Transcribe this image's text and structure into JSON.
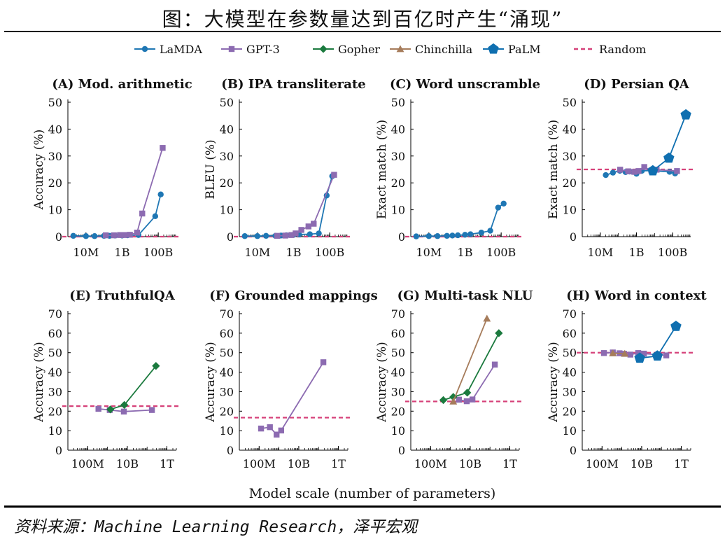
{
  "title": "图：大模型在参数量达到百亿时产生“涌现”",
  "source": "资料来源：Machine Learning Research，泽平宏观",
  "colors": {
    "LaMDA": "#1f77b4",
    "GPT-3": "#8c6bb1",
    "Gopher": "#1b7a3e",
    "Chinchilla": "#a67c5b",
    "PaLM": "#0f6fb0",
    "Random": "#d6427a"
  },
  "legend": [
    {
      "name": "LaMDA",
      "marker": "circle",
      "color": "#1f77b4"
    },
    {
      "name": "GPT-3",
      "marker": "square",
      "color": "#8c6bb1"
    },
    {
      "name": "Gopher",
      "marker": "diamond",
      "color": "#1b7a3e"
    },
    {
      "name": "Chinchilla",
      "marker": "triangle",
      "color": "#a67c5b"
    },
    {
      "name": "PaLM",
      "marker": "pentagon",
      "color": "#0f6fb0"
    },
    {
      "name": "Random",
      "marker": "dash",
      "color": "#d6427a"
    }
  ],
  "shared_xlabel": "Model scale (number of parameters)",
  "chart_data": [
    {
      "type": "line",
      "title": "(A) Mod. arithmetic",
      "ylabel": "Accuracy (%)",
      "xscale": "log",
      "xlim": [
        1000000.0,
        1000000000000.0
      ],
      "ylim": [
        0,
        50
      ],
      "yticks": [
        0,
        10,
        20,
        30,
        40,
        50
      ],
      "xticks": [
        {
          "v": 10000000.0,
          "label": "10M"
        },
        {
          "v": 1000000000.0,
          "label": "1B"
        },
        {
          "v": 100000000000.0,
          "label": "100B"
        }
      ],
      "random": 0,
      "series": [
        {
          "name": "LaMDA",
          "x": [
            2000000.0,
            10000000.0,
            30000000.0,
            100000000.0,
            200000000.0,
            400000000.0,
            1000000000.0,
            2000000000.0,
            8000000000.0,
            68000000000.0,
            137000000000.0
          ],
          "y": [
            0.3,
            0.2,
            0.2,
            0.3,
            0.3,
            0.4,
            0.4,
            0.5,
            0.6,
            7.6,
            15.7
          ]
        },
        {
          "name": "GPT-3",
          "x": [
            125000000.0,
            350000000.0,
            760000000.0,
            1300000000.0,
            2700000000.0,
            6700000000.0,
            13000000000.0,
            175000000000.0
          ],
          "y": [
            0.5,
            0.5,
            0.6,
            0.6,
            0.7,
            1.5,
            8.6,
            33
          ]
        }
      ]
    },
    {
      "type": "line",
      "title": "(B) IPA transliterate",
      "ylabel": "BLEU (%)",
      "xscale": "log",
      "xlim": [
        1000000.0,
        1000000000000.0
      ],
      "ylim": [
        0,
        50
      ],
      "yticks": [
        0,
        10,
        20,
        30,
        40,
        50
      ],
      "xticks": [
        {
          "v": 10000000.0,
          "label": "10M"
        },
        {
          "v": 1000000000.0,
          "label": "1B"
        },
        {
          "v": 100000000000.0,
          "label": "100B"
        }
      ],
      "random": 0,
      "series": [
        {
          "name": "LaMDA",
          "x": [
            2000000.0,
            10000000.0,
            30000000.0,
            100000000.0,
            200000000.0,
            400000000.0,
            1000000000.0,
            2000000000.0,
            8000000000.0,
            25000000000.0,
            68000000000.0,
            137000000000.0
          ],
          "y": [
            0.2,
            0.2,
            0.3,
            0.3,
            0.4,
            0.5,
            0.7,
            0.8,
            0.9,
            1.2,
            15.3,
            22.5
          ]
        },
        {
          "name": "GPT-3",
          "x": [
            125000000.0,
            350000000.0,
            760000000.0,
            1300000000.0,
            2700000000.0,
            6700000000.0,
            13000000000.0,
            175000000000.0
          ],
          "y": [
            0.3,
            0.4,
            0.6,
            1.2,
            2.5,
            3.8,
            4.8,
            23
          ]
        }
      ]
    },
    {
      "type": "line",
      "title": "(C) Word unscramble",
      "ylabel": "Exact match (%)",
      "xscale": "log",
      "xlim": [
        1000000.0,
        1000000000000.0
      ],
      "ylim": [
        0,
        50
      ],
      "yticks": [
        0,
        10,
        20,
        30,
        40,
        50
      ],
      "xticks": [
        {
          "v": 10000000.0,
          "label": "10M"
        },
        {
          "v": 1000000000.0,
          "label": "1B"
        },
        {
          "v": 100000000000.0,
          "label": "100B"
        }
      ],
      "random": 0,
      "series": [
        {
          "name": "LaMDA",
          "x": [
            2000000.0,
            10000000.0,
            30000000.0,
            100000000.0,
            200000000.0,
            400000000.0,
            1000000000.0,
            2000000000.0,
            8000000000.0,
            25000000000.0,
            68000000000.0,
            137000000000.0
          ],
          "y": [
            0.1,
            0.2,
            0.2,
            0.3,
            0.4,
            0.5,
            0.7,
            0.9,
            1.5,
            2.2,
            10.8,
            12.3
          ]
        }
      ]
    },
    {
      "type": "line",
      "title": "(D) Persian QA",
      "ylabel": "Exact match (%)",
      "xscale": "log",
      "xlim": [
        1000000.0,
        1000000000000.0
      ],
      "ylim": [
        0,
        50
      ],
      "yticks": [
        0,
        10,
        20,
        30,
        40,
        50
      ],
      "xticks": [
        {
          "v": 10000000.0,
          "label": "10M"
        },
        {
          "v": 1000000000.0,
          "label": "1B"
        },
        {
          "v": 100000000000.0,
          "label": "100B"
        }
      ],
      "random": 25,
      "series": [
        {
          "name": "LaMDA",
          "x": [
            20000000.0,
            50000000.0,
            120000000.0,
            250000000.0,
            420000000.0,
            1000000000.0,
            2000000000.0,
            8000000000.0,
            68000000000.0,
            137000000000.0
          ],
          "y": [
            22.9,
            23.8,
            24.5,
            24.0,
            24.2,
            23.4,
            24.5,
            24.5,
            24.1,
            23.5
          ]
        },
        {
          "name": "GPT-3",
          "x": [
            125000000.0,
            350000000.0,
            760000000.0,
            1300000000.0,
            2700000000.0,
            6700000000.0,
            13000000000.0,
            175000000000.0
          ],
          "y": [
            24.9,
            24.3,
            24.1,
            24.4,
            25.9,
            24.6,
            24.9,
            24.4
          ]
        },
        {
          "name": "PaLM",
          "x": [
            8000000000.0,
            62000000000.0,
            540000000000.0
          ],
          "y": [
            24.5,
            29.2,
            45.3
          ]
        }
      ]
    },
    {
      "type": "line",
      "title": "(E) TruthfulQA",
      "ylabel": "Accuracy (%)",
      "xscale": "log",
      "xlim": [
        10000000.0,
        3000000000000.0
      ],
      "ylim": [
        0,
        70
      ],
      "yticks": [
        0,
        10,
        20,
        30,
        40,
        50,
        60,
        70
      ],
      "xticks": [
        {
          "v": 100000000.0,
          "label": "100M"
        },
        {
          "v": 10000000000.0,
          "label": "10B"
        },
        {
          "v": 1000000000000.0,
          "label": "1T"
        }
      ],
      "random": 22.6,
      "series": [
        {
          "name": "GPT-3",
          "x": [
            350000000.0,
            1300000000.0,
            6700000000.0,
            175000000000.0
          ],
          "y": [
            21.2,
            20.6,
            19.8,
            20.6
          ]
        },
        {
          "name": "Gopher",
          "x": [
            1400000000.0,
            7100000000.0,
            280000000000.0
          ],
          "y": [
            20.9,
            23.2,
            43.2
          ]
        }
      ]
    },
    {
      "type": "line",
      "title": "(F) Grounded mappings",
      "ylabel": "Accuracy (%)",
      "xscale": "log",
      "xlim": [
        10000000.0,
        3000000000000.0
      ],
      "ylim": [
        0,
        70
      ],
      "yticks": [
        0,
        10,
        20,
        30,
        40,
        50,
        60,
        70
      ],
      "xticks": [
        {
          "v": 100000000.0,
          "label": "100M"
        },
        {
          "v": 10000000000.0,
          "label": "10B"
        },
        {
          "v": 1000000000000.0,
          "label": "1T"
        }
      ],
      "random": 16.7,
      "series": [
        {
          "name": "GPT-3",
          "x": [
            125000000.0,
            350000000.0,
            760000000.0,
            1300000000.0,
            175000000000.0
          ],
          "y": [
            11.1,
            11.8,
            8.0,
            10.1,
            45.1
          ]
        }
      ]
    },
    {
      "type": "line",
      "title": "(G) Multi-task NLU",
      "ylabel": "Accuracy (%)",
      "xscale": "log",
      "xlim": [
        10000000.0,
        3000000000000.0
      ],
      "ylim": [
        0,
        70
      ],
      "yticks": [
        0,
        10,
        20,
        30,
        40,
        50,
        60,
        70
      ],
      "xticks": [
        {
          "v": 100000000.0,
          "label": "100M"
        },
        {
          "v": 10000000000.0,
          "label": "10B"
        },
        {
          "v": 1000000000000.0,
          "label": "1T"
        }
      ],
      "random": 25,
      "series": [
        {
          "name": "GPT-3",
          "x": [
            2700000000.0,
            6700000000.0,
            13000000000.0,
            175000000000.0
          ],
          "y": [
            25.9,
            25.1,
            26.0,
            43.9
          ]
        },
        {
          "name": "Gopher",
          "x": [
            440000000.0,
            1400000000.0,
            7100000000.0,
            280000000000.0
          ],
          "y": [
            25.7,
            27.3,
            29.5,
            60.0
          ]
        },
        {
          "name": "Chinchilla",
          "x": [
            1400000000.0,
            70000000000.0
          ],
          "y": [
            25.0,
            67.5
          ]
        }
      ]
    },
    {
      "type": "line",
      "title": "(H) Word in context",
      "ylabel": "Accuracy (%)",
      "xscale": "log",
      "xlim": [
        10000000.0,
        3000000000000.0
      ],
      "ylim": [
        0,
        70
      ],
      "yticks": [
        0,
        10,
        20,
        30,
        40,
        50,
        60,
        70
      ],
      "xticks": [
        {
          "v": 100000000.0,
          "label": "100M"
        },
        {
          "v": 10000000000.0,
          "label": "10B"
        },
        {
          "v": 1000000000000.0,
          "label": "1T"
        }
      ],
      "random": 50,
      "series": [
        {
          "name": "GPT-3",
          "x": [
            125000000.0,
            350000000.0,
            760000000.0,
            1300000000.0,
            2700000000.0,
            6700000000.0,
            13000000000.0,
            175000000000.0
          ],
          "y": [
            49.8,
            50.1,
            49.7,
            49.4,
            49.0,
            49.8,
            49.5,
            48.6
          ]
        },
        {
          "name": "Chinchilla",
          "x": [
            350000000.0,
            1400000000.0
          ],
          "y": [
            49.7,
            49.5
          ]
        },
        {
          "name": "PaLM",
          "x": [
            8000000000.0,
            62000000000.0,
            540000000000.0
          ],
          "y": [
            47.2,
            48.3,
            63.5
          ]
        }
      ]
    }
  ]
}
